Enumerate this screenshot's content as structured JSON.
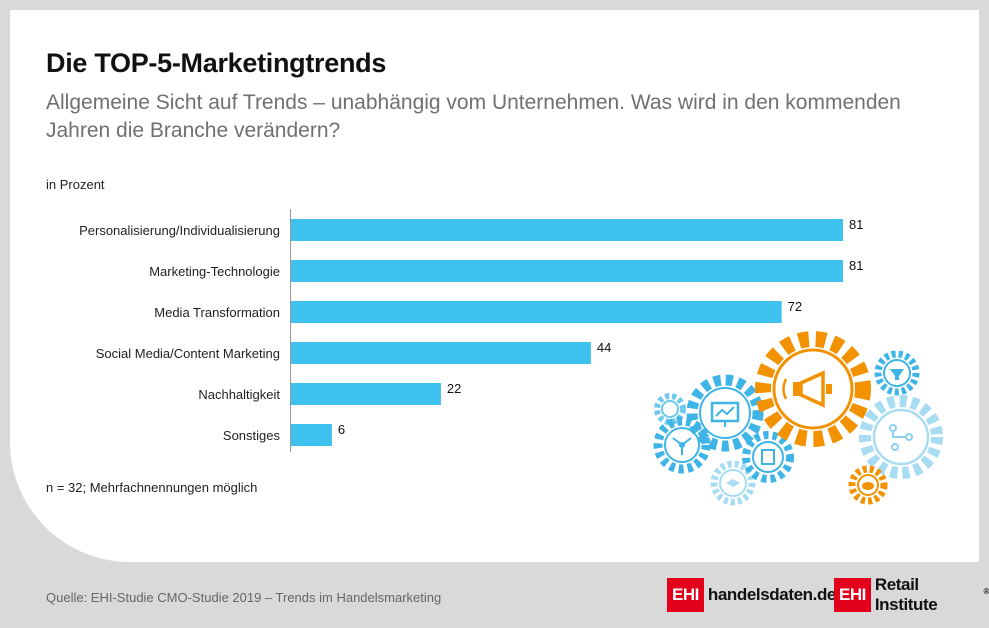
{
  "title": "Die TOP-5-Marketingtrends",
  "subtitle": "Allgemeine Sicht auf Trends – unabhängig vom Unternehmen. Was wird in den kommenden Jahren die Branche verändern?",
  "unit_label": "in Prozent",
  "note": "n = 32; Mehrfachnennungen möglich",
  "source": "Quelle: EHI-Studie CMO-Studie 2019 – Trends im Handelsmarketing",
  "logos": {
    "ehi_mark": "EHI",
    "handelsdaten": "handelsdaten.de",
    "retail_institute": "Retail Institute",
    "registered": "®"
  },
  "colors": {
    "bar": "#3fc1ef",
    "gear_orange": "#f39200",
    "gear_blue": "#3fb4e6",
    "brand_red": "#e2001a"
  },
  "chart_data": {
    "type": "bar",
    "orientation": "horizontal",
    "categories": [
      "Personalisierung/Individualisierung",
      "Marketing-Technologie",
      "Media Transformation",
      "Social Media/Content Marketing",
      "Nachhaltigkeit",
      "Sonstiges"
    ],
    "values": [
      81,
      81,
      72,
      44,
      22,
      6
    ],
    "xlim": [
      0,
      81
    ],
    "ylabel": "in Prozent",
    "grid": false,
    "legend": "none"
  }
}
